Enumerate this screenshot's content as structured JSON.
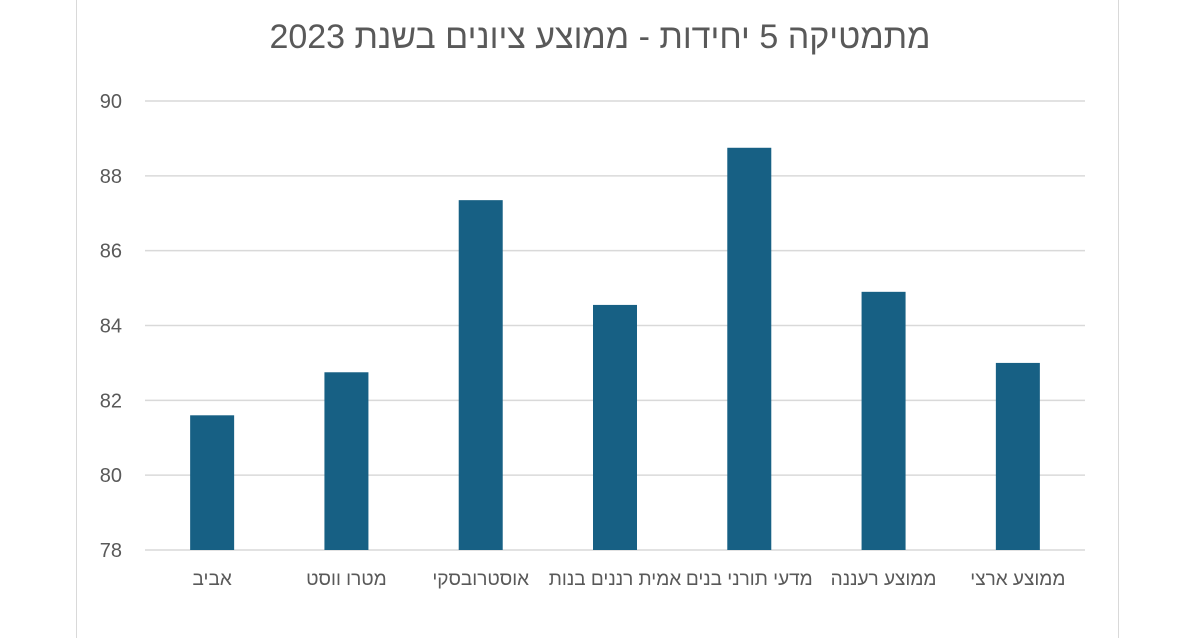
{
  "chart_data": {
    "type": "bar",
    "title": "מתמטיקה 5 יחידות - ממוצע ציונים בשנת 2023",
    "categories": [
      "אביב",
      "מטרו ווסט",
      "אוסטרובסקי",
      "אמית רננים בנות",
      "מדעי תורני בנים",
      "ממוצע רעננה",
      "ממוצע ארצי"
    ],
    "values": [
      81.6,
      82.75,
      87.35,
      84.55,
      88.75,
      84.9,
      83.0
    ],
    "xlabel": "",
    "ylabel": "",
    "ylim": [
      78,
      90
    ],
    "yticks": [
      78,
      80,
      82,
      84,
      86,
      88,
      90
    ],
    "grid": true,
    "bar_color": "#176084",
    "grid_color": "#d9d9d9",
    "text_color": "#595959"
  }
}
